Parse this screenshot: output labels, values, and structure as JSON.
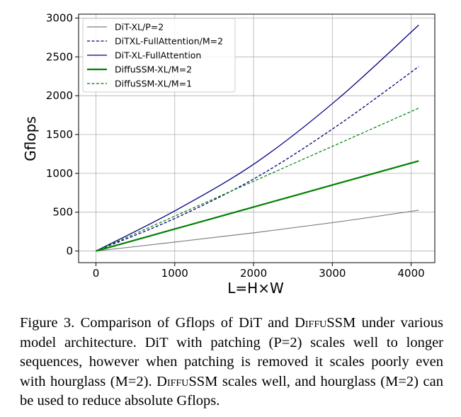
{
  "chart_data": {
    "type": "line",
    "xlabel": "L=H×W",
    "ylabel": "Gflops",
    "xlim": [
      -220,
      4300
    ],
    "ylim": [
      -150,
      3050
    ],
    "xticks": [
      0,
      1000,
      2000,
      3000,
      4000
    ],
    "yticks": [
      0,
      500,
      1000,
      1500,
      2000,
      2500,
      3000
    ],
    "grid": true,
    "legend_position": "top-left",
    "series": [
      {
        "name": "DiT-XL/P=2",
        "color": "#7f7f7f",
        "style": "solid",
        "width": 1.2,
        "x": [
          0,
          1024,
          2048,
          3072,
          4096
        ],
        "y": [
          0,
          118,
          240,
          375,
          525
        ]
      },
      {
        "name": "DiTXL-FullAttention/M=2",
        "color": "#000080",
        "style": "dashed",
        "width": 1.3,
        "x": [
          0,
          1024,
          2048,
          3072,
          4096
        ],
        "y": [
          0,
          430,
          955,
          1620,
          2375
        ]
      },
      {
        "name": "DiT-XL-FullAttention",
        "color": "#000080",
        "style": "solid",
        "width": 1.3,
        "x": [
          0,
          1024,
          2048,
          3072,
          4096
        ],
        "y": [
          0,
          530,
          1150,
          1960,
          2910
        ]
      },
      {
        "name": "DiffuSSM-XL/M=2",
        "color": "#008000",
        "style": "solid",
        "width": 2.2,
        "x": [
          0,
          1024,
          2048,
          3072,
          4096
        ],
        "y": [
          0,
          290,
          580,
          870,
          1160
        ]
      },
      {
        "name": "DiffuSSM-XL/M=1",
        "color": "#008000",
        "style": "dashed",
        "width": 1.2,
        "x": [
          0,
          1024,
          2048,
          3072,
          4096
        ],
        "y": [
          0,
          460,
          920,
          1380,
          1840
        ]
      }
    ]
  },
  "caption": {
    "prefix": "Figure 3.  Comparison of Gflops of DiT and ",
    "diffu1": "Diffu",
    "ssm1": "SSM",
    "middle": " under various model architecture. DiT with patching (P=2) scales well to longer sequences, however when patching is removed it scales poorly even with hourglass (M=2). ",
    "diffu2": "Diffu",
    "ssm2": "SSM",
    "suffix": " scales well, and hourglass (M=2) can be used to reduce absolute Gflops."
  }
}
